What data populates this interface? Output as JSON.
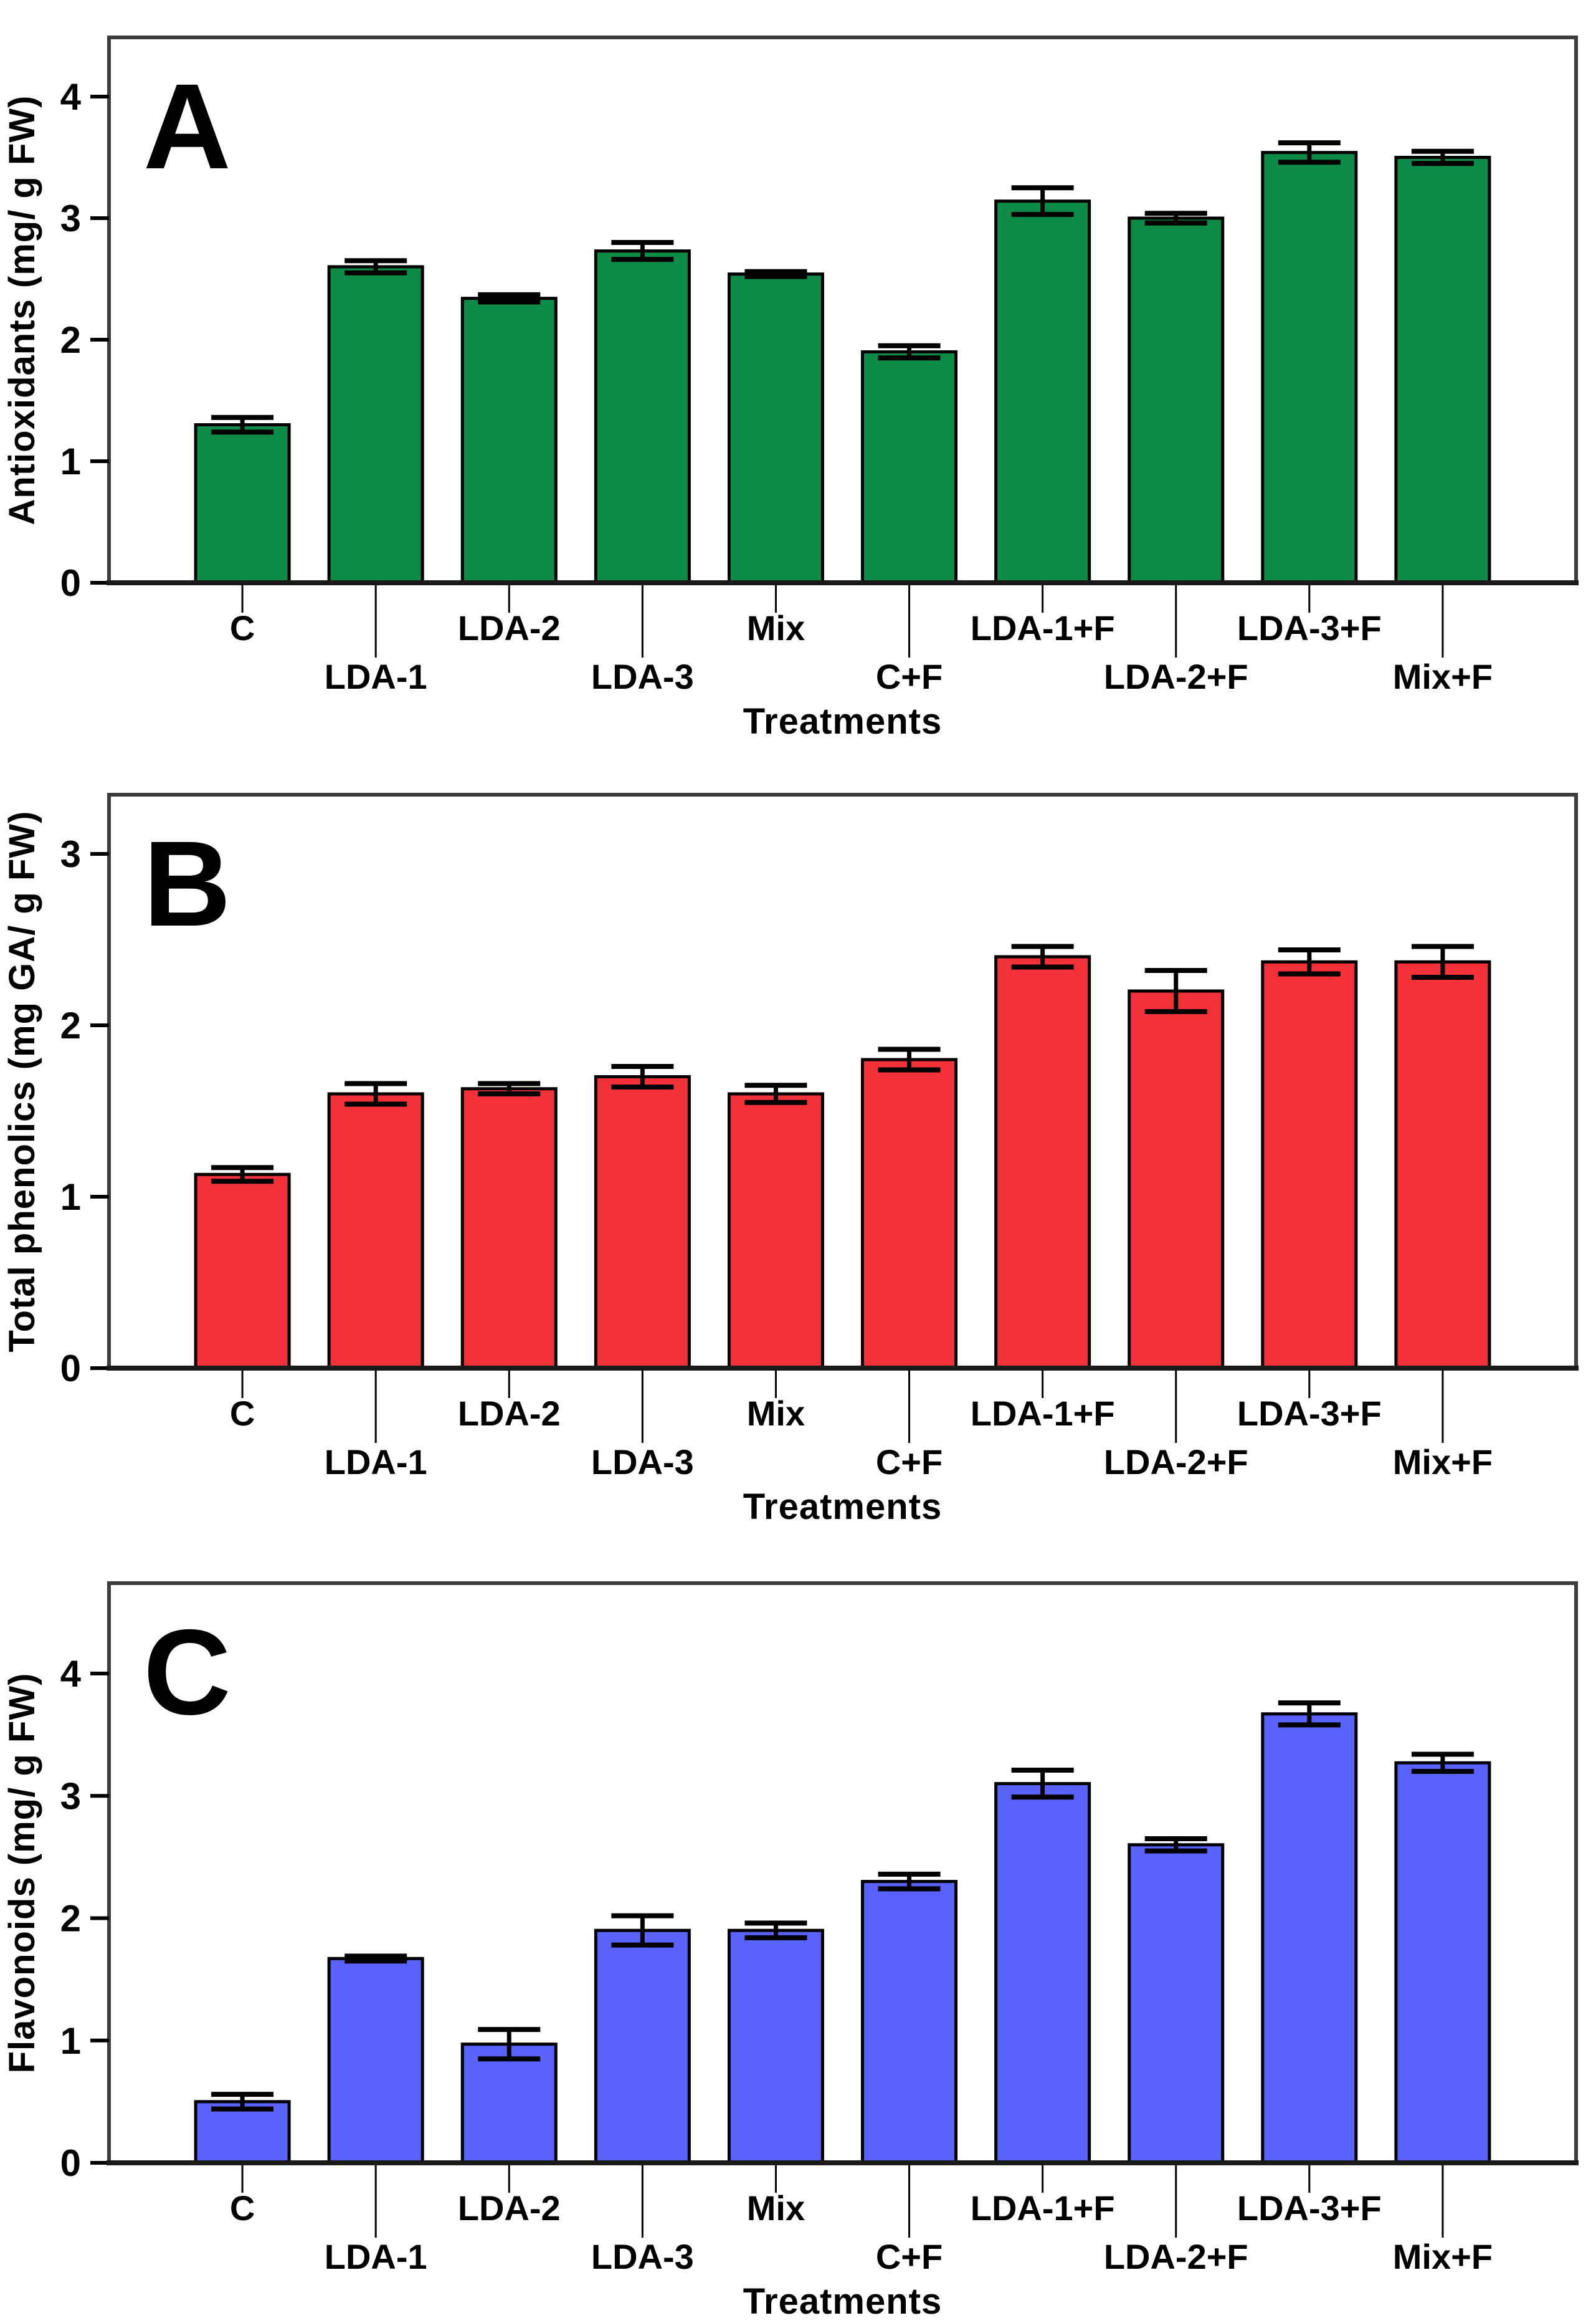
{
  "style": {
    "background": "#FFFFFF",
    "frame_color": "#3D3D3D",
    "axis_line_color": "#1A1A1A",
    "bar_edge_color": "#000000",
    "error_bar_color": "#000000",
    "tick_color": "#000000"
  },
  "chart_data": [
    {
      "type": "bar",
      "panel_label": "A",
      "ylabel": "Antioxidants (mg/ g FW)",
      "xlabel": "Treatments",
      "categories": [
        "C",
        "LDA-1",
        "LDA-2",
        "LDA-3",
        "Mix",
        "C+F",
        "LDA-1+F",
        "LDA-2+F",
        "LDA-3+F",
        "Mix+F"
      ],
      "values": [
        1.3,
        2.6,
        2.34,
        2.73,
        2.54,
        1.9,
        3.14,
        3.0,
        3.54,
        3.5
      ],
      "errors": [
        0.06,
        0.05,
        0.03,
        0.07,
        0.02,
        0.05,
        0.11,
        0.04,
        0.08,
        0.05
      ],
      "ylim": [
        0,
        4
      ],
      "yticks": [
        0,
        1,
        2,
        3,
        4
      ],
      "bar_color": "#0D8C48",
      "grid": false,
      "legend_position": "none",
      "error_bars": "plus-minus with caps"
    },
    {
      "type": "bar",
      "panel_label": "B",
      "ylabel": "Total phenolics (mg GA/ g FW)",
      "xlabel": "Treatments",
      "categories": [
        "C",
        "LDA-1",
        "LDA-2",
        "LDA-3",
        "Mix",
        "C+F",
        "LDA-1+F",
        "LDA-2+F",
        "LDA-3+F",
        "Mix+F"
      ],
      "values": [
        1.13,
        1.6,
        1.63,
        1.7,
        1.6,
        1.8,
        2.4,
        2.2,
        2.37,
        2.37
      ],
      "errors": [
        0.04,
        0.06,
        0.03,
        0.06,
        0.05,
        0.06,
        0.06,
        0.12,
        0.07,
        0.09
      ],
      "ylim": [
        0,
        3
      ],
      "yticks": [
        0,
        1,
        2,
        3
      ],
      "bar_color": "#F23138",
      "grid": false,
      "legend_position": "none",
      "error_bars": "plus-minus with caps"
    },
    {
      "type": "bar",
      "panel_label": "C",
      "ylabel": "Flavonoids (mg/ g FW)",
      "xlabel": "Treatments",
      "categories": [
        "C",
        "LDA-1",
        "LDA-2",
        "LDA-3",
        "Mix",
        "C+F",
        "LDA-1+F",
        "LDA-2+F",
        "LDA-3+F",
        "Mix+F"
      ],
      "values": [
        0.5,
        1.67,
        0.97,
        1.9,
        1.9,
        2.3,
        3.1,
        2.6,
        3.67,
        3.27
      ],
      "errors": [
        0.06,
        0.02,
        0.12,
        0.12,
        0.06,
        0.06,
        0.11,
        0.05,
        0.09,
        0.07
      ],
      "ylim": [
        0,
        4
      ],
      "yticks": [
        0,
        1,
        2,
        3,
        4
      ],
      "bar_color": "#5A62FC",
      "grid": false,
      "legend_position": "none",
      "error_bars": "plus-minus with caps"
    }
  ]
}
